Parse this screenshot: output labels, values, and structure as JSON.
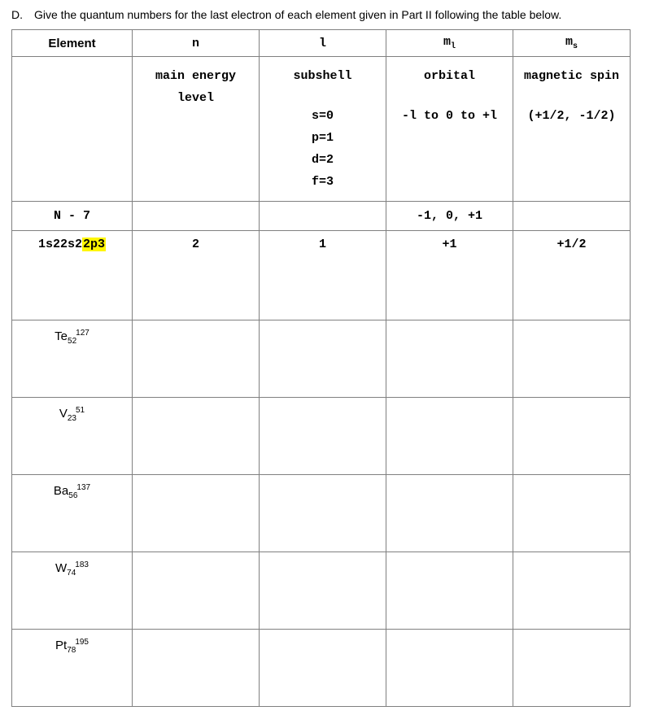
{
  "prompt": {
    "letter": "D.",
    "text": "Give the quantum numbers for the last electron of each element given in Part II following the table below."
  },
  "headers": {
    "element": "Element",
    "n": "n",
    "l": "l",
    "ml_base": "m",
    "ml_sub": "l",
    "ms_base": "m",
    "ms_sub": "s"
  },
  "descriptions": {
    "n_line1": "main energy",
    "n_line2": "level",
    "l_title": "subshell",
    "l_s": "s=0",
    "l_p": "p=1",
    "l_d": "d=2",
    "l_f": "f=3",
    "ml_title": "orbital",
    "ml_range": "-l to 0 to +l",
    "ms_title": "magnetic spin",
    "ms_vals": "(+1/2, -1/2)"
  },
  "example": {
    "elem_label": "N - 7",
    "config_pre": "1s22s2",
    "config_hl": "2p3",
    "n": "2",
    "l": "1",
    "ml_line": "-1, 0, +1",
    "ml": "+1",
    "ms": "+1/2"
  },
  "rows": [
    {
      "sym": "Te",
      "sub": "52",
      "sup": "127"
    },
    {
      "sym": "V",
      "sub": "23",
      "sup": "51"
    },
    {
      "sym": "Ba",
      "sub": "56",
      "sup": "137"
    },
    {
      "sym": "W",
      "sub": "74",
      "sup": "183"
    },
    {
      "sym": "Pt",
      "sub": "78",
      "sup": "195"
    }
  ]
}
